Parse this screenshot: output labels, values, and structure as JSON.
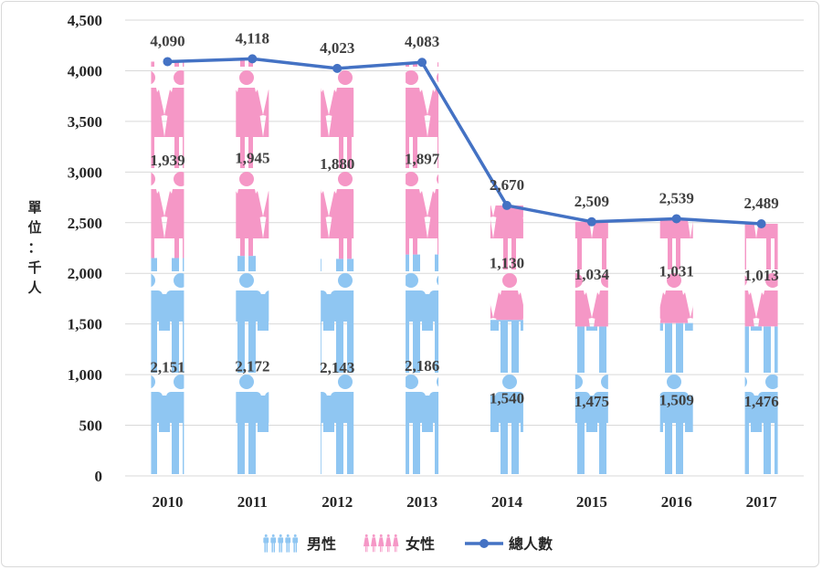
{
  "chart_data": {
    "type": "bar",
    "subtype": "stacked pictograph bar with total line",
    "categories": [
      "2010",
      "2011",
      "2012",
      "2013",
      "2014",
      "2015",
      "2016",
      "2017"
    ],
    "series": [
      {
        "name": "男性",
        "kind": "bar",
        "color": "#8fc6f2",
        "values": [
          2151,
          2172,
          2143,
          2186,
          1540,
          1475,
          1509,
          1476
        ],
        "labels": [
          "2,151",
          "2,172",
          "2,143",
          "2,186",
          "1,540",
          "1,475",
          "1,509",
          "1,476"
        ]
      },
      {
        "name": "女性",
        "kind": "bar",
        "color": "#f597c6",
        "values": [
          1939,
          1945,
          1880,
          1897,
          1130,
          1034,
          1031,
          1013
        ],
        "labels": [
          "1,939",
          "1,945",
          "1,880",
          "1,897",
          "1,130",
          "1,034",
          "1,031",
          "1,013"
        ]
      },
      {
        "name": "總人數",
        "kind": "line",
        "color": "#4472c4",
        "values": [
          4090,
          4118,
          4023,
          4083,
          2670,
          2509,
          2539,
          2489
        ],
        "labels": [
          "4,090",
          "4,118",
          "4,023",
          "4,083",
          "2,670",
          "2,509",
          "2,539",
          "2,489"
        ]
      }
    ],
    "ylabel": "單位：千人",
    "ylim": [
      0,
      4500
    ],
    "yticks": [
      0,
      500,
      1000,
      1500,
      2000,
      2500,
      3000,
      3500,
      4000,
      4500
    ],
    "ytick_labels": [
      "0",
      "500",
      "1,000",
      "1,500",
      "2,000",
      "2,500",
      "3,000",
      "3,500",
      "4,000",
      "4,500"
    ],
    "grid": true,
    "legend_position": "bottom"
  }
}
